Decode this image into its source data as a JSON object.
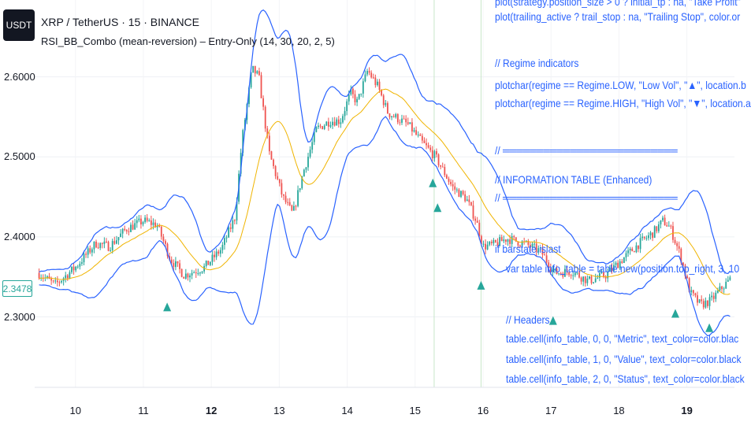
{
  "header": {
    "logo_text": "USDT",
    "title": "XRP / TetherUS · 15 · BINANCE",
    "indicator": "RSI_BB_Combo (mean-reversion) – Entry-Only (14, 30, 20, 2, 5)"
  },
  "code_lines": [
    "plot(strategy.position_size > 0 ? initial_tp : na, \"Take Profit\"",
    "plot(trailing_active ? trail_stop : na, \"Trailing Stop\", color.or",
    "// Regime indicators",
    "plotchar(regime == Regime.LOW, \"Low Vol\", \"▲\", location.b",
    "plotchar(regime == Regime.HIGH, \"High Vol\", \"▼\", location.a",
    "// ══════════════════════════",
    "// INFORMATION TABLE (Enhanced)",
    "// ══════════════════════════",
    "if barstate.islast",
    "var table info_table = table.new(position.top_right, 3, 10",
    "// Headers",
    "table.cell(info_table, 0, 0, \"Metric\", text_color=color.blac",
    "table.cell(info_table, 1, 0, \"Value\", text_color=color.black",
    "table.cell(info_table, 2, 0, \"Status\", text_color=color.black"
  ],
  "price_badge": "2.3478",
  "colors": {
    "up": "#26a69a",
    "down": "#ef5350",
    "bands": "#2962ff",
    "basis": "#f0b400",
    "code": "#2962ff",
    "signal": "#26a69a"
  },
  "chart_data": {
    "type": "candlestick",
    "symbol": "XRP / TetherUS",
    "interval": "15",
    "exchange": "BINANCE",
    "y_ticks": [
      "2.6000",
      "2.5000",
      "2.4000",
      "2.3000"
    ],
    "y_tick_values": [
      2.6,
      2.5,
      2.4,
      2.3
    ],
    "ylim": [
      2.212,
      2.696
    ],
    "x_ticks": [
      {
        "label": "10",
        "bold": false
      },
      {
        "label": "11",
        "bold": false
      },
      {
        "label": "12",
        "bold": true
      },
      {
        "label": "13",
        "bold": false
      },
      {
        "label": "14",
        "bold": false
      },
      {
        "label": "15",
        "bold": false
      },
      {
        "label": "16",
        "bold": false
      },
      {
        "label": "17",
        "bold": false
      },
      {
        "label": "18",
        "bold": false
      },
      {
        "label": "19",
        "bold": true
      }
    ],
    "x_range": [
      9.4,
      19.7
    ],
    "last_price": 2.3478,
    "price_path": [
      [
        9.45,
        2.355
      ],
      [
        9.7,
        2.34
      ],
      [
        10.0,
        2.362
      ],
      [
        10.3,
        2.392
      ],
      [
        10.5,
        2.388
      ],
      [
        10.75,
        2.41
      ],
      [
        11.0,
        2.42
      ],
      [
        11.2,
        2.415
      ],
      [
        11.4,
        2.372
      ],
      [
        11.6,
        2.352
      ],
      [
        11.9,
        2.362
      ],
      [
        12.15,
        2.385
      ],
      [
        12.35,
        2.425
      ],
      [
        12.45,
        2.52
      ],
      [
        12.6,
        2.61
      ],
      [
        12.7,
        2.6
      ],
      [
        12.85,
        2.505
      ],
      [
        13.05,
        2.45
      ],
      [
        13.2,
        2.428
      ],
      [
        13.35,
        2.48
      ],
      [
        13.55,
        2.535
      ],
      [
        13.75,
        2.545
      ],
      [
        13.9,
        2.545
      ],
      [
        14.05,
        2.58
      ],
      [
        14.15,
        2.568
      ],
      [
        14.3,
        2.608
      ],
      [
        14.45,
        2.588
      ],
      [
        14.6,
        2.555
      ],
      [
        14.9,
        2.54
      ],
      [
        15.1,
        2.518
      ],
      [
        15.3,
        2.5
      ],
      [
        15.55,
        2.462
      ],
      [
        15.75,
        2.448
      ],
      [
        15.9,
        2.42
      ],
      [
        16.0,
        2.388
      ],
      [
        16.15,
        2.39
      ],
      [
        16.35,
        2.398
      ],
      [
        16.6,
        2.392
      ],
      [
        16.85,
        2.382
      ],
      [
        17.05,
        2.355
      ],
      [
        17.3,
        2.357
      ],
      [
        17.55,
        2.345
      ],
      [
        17.8,
        2.352
      ],
      [
        18.05,
        2.372
      ],
      [
        18.3,
        2.392
      ],
      [
        18.5,
        2.405
      ],
      [
        18.65,
        2.42
      ],
      [
        18.75,
        2.412
      ],
      [
        18.9,
        2.378
      ],
      [
        19.05,
        2.33
      ],
      [
        19.2,
        2.315
      ],
      [
        19.35,
        2.32
      ],
      [
        19.5,
        2.335
      ],
      [
        19.65,
        2.348
      ]
    ],
    "signals": [
      {
        "x": 11.35,
        "y": 2.312
      },
      {
        "x": 15.26,
        "y": 2.467
      },
      {
        "x": 15.33,
        "y": 2.436
      },
      {
        "x": 15.97,
        "y": 2.339
      },
      {
        "x": 17.03,
        "y": 2.295
      },
      {
        "x": 18.83,
        "y": 2.304
      },
      {
        "x": 19.33,
        "y": 2.286
      }
    ],
    "session_lines": [
      15.28,
      15.97
    ]
  }
}
